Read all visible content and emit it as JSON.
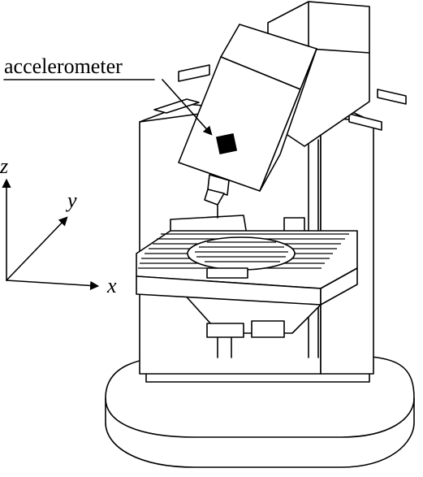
{
  "labels": {
    "sensor": "accelerometer",
    "x_axis": "x",
    "y_axis": "y",
    "z_axis": "z"
  },
  "colors": {
    "ink": "#000000",
    "paper": "#ffffff"
  },
  "icons": {
    "axis_arrow": "arrowhead"
  }
}
